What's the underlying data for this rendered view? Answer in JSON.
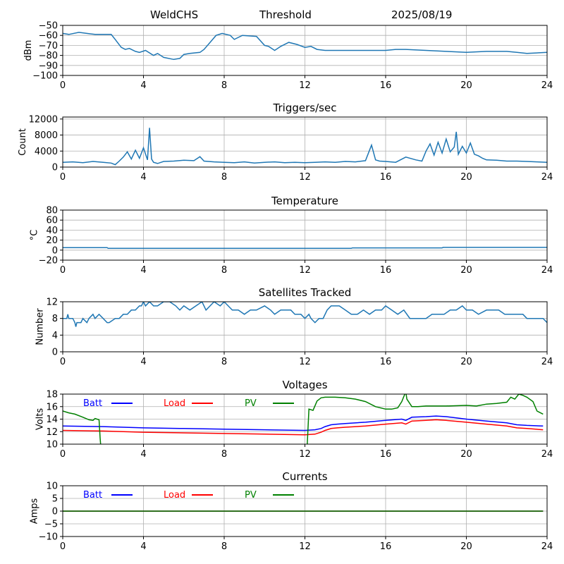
{
  "header": {
    "station": "WeldCHS",
    "label": "Threshold",
    "date": "2025/08/19"
  },
  "colors": {
    "series": "#1f77b4",
    "batt": "#0000ff",
    "load": "#ff0000",
    "pv": "#008000",
    "grid": "#b0b0b0"
  },
  "chart_data": [
    {
      "type": "line",
      "title": "",
      "ylabel": "dBm",
      "xlim": [
        0,
        24
      ],
      "ylim": [
        -100,
        -50
      ],
      "xticks": [
        0,
        4,
        8,
        12,
        16,
        20,
        24
      ],
      "yticks": [
        -100,
        -90,
        -80,
        -70,
        -60,
        -50
      ],
      "grid": true,
      "series": [
        {
          "x": [
            0,
            0.3,
            0.8,
            1.2,
            1.6,
            2.0,
            2.4,
            2.6,
            2.9,
            3.1,
            3.3,
            3.6,
            3.8,
            4.1,
            4.5,
            4.7,
            5.0,
            5.5,
            5.8,
            6.0,
            6.3,
            6.8,
            7.0,
            7.3,
            7.6,
            7.9,
            8.3,
            8.5,
            8.9,
            9.6,
            10.0,
            10.2,
            10.5,
            10.8,
            11.2,
            11.6,
            12.0,
            12.3,
            12.6,
            13.0,
            14.0,
            15.0,
            16.0,
            16.5,
            17.0,
            18.0,
            19.0,
            20.0,
            21.0,
            22.0,
            22.5,
            23.0,
            24.0
          ],
          "y": [
            -58,
            -59,
            -57,
            -58,
            -59,
            -59,
            -59,
            -64,
            -72,
            -74,
            -73,
            -76,
            -77,
            -75,
            -80,
            -78,
            -82,
            -84,
            -83,
            -79,
            -78,
            -77,
            -74,
            -67,
            -60,
            -58,
            -60,
            -64,
            -60,
            -61,
            -70,
            -71,
            -75,
            -71,
            -67,
            -69,
            -72,
            -71,
            -74,
            -75,
            -75,
            -75,
            -75,
            -74,
            -74,
            -75,
            -76,
            -77,
            -76,
            -76,
            -77,
            -78,
            -77
          ]
        }
      ]
    },
    {
      "type": "line",
      "title": "Triggers/sec",
      "ylabel": "Count",
      "xlim": [
        0,
        24
      ],
      "ylim": [
        0,
        12500
      ],
      "xticks": [
        0,
        4,
        8,
        12,
        16,
        20,
        24
      ],
      "yticks": [
        0,
        4000,
        8000,
        12000
      ],
      "grid": true,
      "series": [
        {
          "x": [
            0,
            0.5,
            1.0,
            1.5,
            2.0,
            2.4,
            2.6,
            2.8,
            3.0,
            3.2,
            3.4,
            3.6,
            3.8,
            4.0,
            4.2,
            4.3,
            4.4,
            4.5,
            4.7,
            5.0,
            5.5,
            6.0,
            6.5,
            6.8,
            7.0,
            7.5,
            8.0,
            8.5,
            9.0,
            9.5,
            10.0,
            10.5,
            11.0,
            11.5,
            12.0,
            12.5,
            13.0,
            13.5,
            14.0,
            14.5,
            15.0,
            15.3,
            15.5,
            15.7,
            16.0,
            16.5,
            17.0,
            17.5,
            17.8,
            18.0,
            18.2,
            18.4,
            18.6,
            18.8,
            19.0,
            19.2,
            19.4,
            19.5,
            19.6,
            19.8,
            20.0,
            20.2,
            20.4,
            20.6,
            20.8,
            21.0,
            21.5,
            22.0,
            22.5,
            23.0,
            23.5,
            24.0
          ],
          "y": [
            1200,
            1300,
            1100,
            1400,
            1200,
            1000,
            600,
            1500,
            2500,
            3800,
            2000,
            4200,
            2200,
            4800,
            1800,
            9800,
            2000,
            1200,
            900,
            1400,
            1500,
            1700,
            1600,
            2600,
            1500,
            1300,
            1200,
            1100,
            1300,
            1000,
            1200,
            1300,
            1100,
            1200,
            1100,
            1200,
            1300,
            1200,
            1400,
            1300,
            1600,
            5500,
            1800,
            1500,
            1400,
            1200,
            2500,
            1800,
            1500,
            4000,
            5800,
            3000,
            6200,
            3500,
            7000,
            3800,
            5000,
            8800,
            3200,
            5200,
            3500,
            6000,
            3200,
            2800,
            2200,
            1800,
            1700,
            1500,
            1500,
            1400,
            1300,
            1200
          ]
        }
      ]
    },
    {
      "type": "line",
      "title": "Temperature",
      "ylabel": "°C",
      "xlim": [
        0,
        24
      ],
      "ylim": [
        -20,
        80
      ],
      "xticks": [
        0,
        4,
        8,
        12,
        16,
        20,
        24
      ],
      "yticks": [
        -20,
        0,
        20,
        40,
        60,
        80
      ],
      "grid": true,
      "series": [
        {
          "x": [
            0,
            2.2,
            2.25,
            14.3,
            14.35,
            18.8,
            18.85,
            24
          ],
          "y": [
            5,
            5,
            3.5,
            3.5,
            4.5,
            4.5,
            5.5,
            5.5
          ]
        }
      ]
    },
    {
      "type": "line",
      "title": "Satellites Tracked",
      "ylabel": "Number",
      "xlim": [
        0,
        24
      ],
      "ylim": [
        0,
        12
      ],
      "xticks": [
        0,
        4,
        8,
        12,
        16,
        20,
        24
      ],
      "yticks": [
        0,
        4,
        8,
        12
      ],
      "grid": true,
      "series": [
        {
          "x": [
            0,
            0.2,
            0.25,
            0.3,
            0.5,
            0.6,
            0.65,
            0.7,
            0.9,
            1.0,
            1.2,
            1.3,
            1.5,
            1.6,
            1.8,
            2.0,
            2.2,
            2.3,
            2.6,
            2.8,
            3.0,
            3.2,
            3.4,
            3.6,
            3.8,
            3.9,
            4.0,
            4.1,
            4.3,
            4.5,
            4.7,
            5.0,
            5.3,
            5.6,
            5.8,
            6.0,
            6.3,
            6.6,
            6.9,
            7.1,
            7.3,
            7.5,
            7.8,
            8.0,
            8.2,
            8.4,
            8.7,
            9.0,
            9.3,
            9.6,
            10.0,
            10.3,
            10.5,
            10.8,
            11.0,
            11.3,
            11.5,
            11.8,
            12.0,
            12.2,
            12.3,
            12.5,
            12.7,
            12.9,
            13.1,
            13.3,
            13.7,
            14.0,
            14.3,
            14.6,
            14.9,
            15.2,
            15.5,
            15.8,
            16.0,
            16.3,
            16.6,
            16.9,
            17.2,
            17.5,
            17.8,
            18.0,
            18.3,
            18.6,
            18.9,
            19.2,
            19.5,
            19.8,
            20.0,
            20.3,
            20.6,
            21.0,
            21.3,
            21.6,
            21.9,
            22.2,
            22.5,
            22.8,
            23.0,
            23.3,
            23.6,
            23.8,
            24.0
          ],
          "y": [
            8,
            8,
            9,
            8,
            8,
            7,
            6,
            7,
            7,
            8,
            7,
            8,
            9,
            8,
            9,
            8,
            7,
            7,
            8,
            8,
            9,
            9,
            10,
            10,
            11,
            11,
            12,
            11,
            12,
            11,
            11,
            12,
            12,
            11,
            10,
            11,
            10,
            11,
            12,
            10,
            11,
            12,
            11,
            12,
            11,
            10,
            10,
            9,
            10,
            10,
            11,
            10,
            9,
            10,
            10,
            10,
            9,
            9,
            8,
            9,
            8,
            7,
            8,
            8,
            10,
            11,
            11,
            10,
            9,
            9,
            10,
            9,
            10,
            10,
            11,
            10,
            9,
            10,
            8,
            8,
            8,
            8,
            9,
            9,
            9,
            10,
            10,
            11,
            10,
            10,
            9,
            10,
            10,
            10,
            9,
            9,
            9,
            9,
            8,
            8,
            8,
            8,
            7
          ]
        }
      ]
    },
    {
      "type": "line",
      "title": "Voltages",
      "ylabel": "Volts",
      "xlim": [
        0,
        24
      ],
      "ylim": [
        10,
        18
      ],
      "xticks": [
        0,
        4,
        8,
        12,
        16,
        20,
        24
      ],
      "yticks": [
        10,
        12,
        14,
        16,
        18
      ],
      "grid": true,
      "legend": [
        "Batt",
        "Load",
        "PV"
      ],
      "series": [
        {
          "name": "Batt",
          "x": [
            0,
            2,
            4,
            6,
            8,
            10,
            12,
            12.5,
            12.8,
            13.0,
            13.3,
            13.6,
            14.0,
            15.0,
            16.0,
            16.8,
            17.0,
            17.3,
            18.0,
            18.5,
            19.0,
            20.0,
            21.0,
            22.0,
            22.5,
            23.0,
            23.8
          ],
          "y": [
            12.9,
            12.8,
            12.6,
            12.5,
            12.4,
            12.3,
            12.2,
            12.3,
            12.5,
            12.8,
            13.1,
            13.2,
            13.3,
            13.5,
            13.8,
            14.0,
            13.8,
            14.3,
            14.4,
            14.5,
            14.4,
            14.0,
            13.7,
            13.4,
            13.1,
            13.0,
            12.9
          ]
        },
        {
          "name": "Load",
          "x": [
            0,
            2,
            4,
            6,
            8,
            10,
            12,
            12.5,
            12.8,
            13.0,
            13.3,
            13.6,
            14.0,
            15.0,
            16.0,
            16.8,
            17.0,
            17.3,
            18.0,
            18.5,
            19.0,
            20.0,
            21.0,
            22.0,
            22.5,
            23.0,
            23.8
          ],
          "y": [
            12.2,
            12.1,
            11.9,
            11.8,
            11.7,
            11.6,
            11.5,
            11.6,
            11.9,
            12.2,
            12.5,
            12.6,
            12.7,
            12.9,
            13.2,
            13.4,
            13.2,
            13.7,
            13.8,
            13.9,
            13.8,
            13.5,
            13.2,
            12.9,
            12.6,
            12.5,
            12.3
          ]
        },
        {
          "name": "PV",
          "x": [
            0,
            0.3,
            0.6,
            1.0,
            1.3,
            1.5,
            1.6,
            1.8,
            1.85,
            1.9,
            12.1,
            12.2,
            12.4,
            12.6,
            12.8,
            13.0,
            13.5,
            14.0,
            14.5,
            15.0,
            15.5,
            16.0,
            16.3,
            16.6,
            16.8,
            17.0,
            17.05,
            17.3,
            17.6,
            18.0,
            19.0,
            20.0,
            20.5,
            21.0,
            21.5,
            22.0,
            22.2,
            22.4,
            22.6,
            22.8,
            23.0,
            23.3,
            23.5,
            23.8
          ],
          "y": [
            15.3,
            15.0,
            14.8,
            14.3,
            13.9,
            13.8,
            14.1,
            13.9,
            11.0,
            9.0,
            9.0,
            15.6,
            15.4,
            16.9,
            17.4,
            17.5,
            17.5,
            17.4,
            17.2,
            16.8,
            16.0,
            15.6,
            15.6,
            15.8,
            16.8,
            18.4,
            17.2,
            16.0,
            16.0,
            16.1,
            16.1,
            16.2,
            16.1,
            16.4,
            16.5,
            16.7,
            17.5,
            17.2,
            18.0,
            17.8,
            17.5,
            16.8,
            15.3,
            14.8
          ]
        }
      ]
    },
    {
      "type": "line",
      "title": "Currents",
      "ylabel": "Amps",
      "xlim": [
        0,
        24
      ],
      "ylim": [
        -10,
        10
      ],
      "xticks": [
        0,
        4,
        8,
        12,
        16,
        20,
        24
      ],
      "yticks": [
        -10,
        -5,
        0,
        5,
        10
      ],
      "grid": true,
      "legend": [
        "Batt",
        "Load",
        "PV"
      ],
      "series": [
        {
          "name": "Batt",
          "x": [
            0,
            23.8
          ],
          "y": [
            0,
            0
          ]
        },
        {
          "name": "Load",
          "x": [
            0,
            23.8
          ],
          "y": [
            0,
            0
          ]
        },
        {
          "name": "PV",
          "x": [
            0,
            23.8
          ],
          "y": [
            0,
            0
          ]
        }
      ]
    }
  ]
}
